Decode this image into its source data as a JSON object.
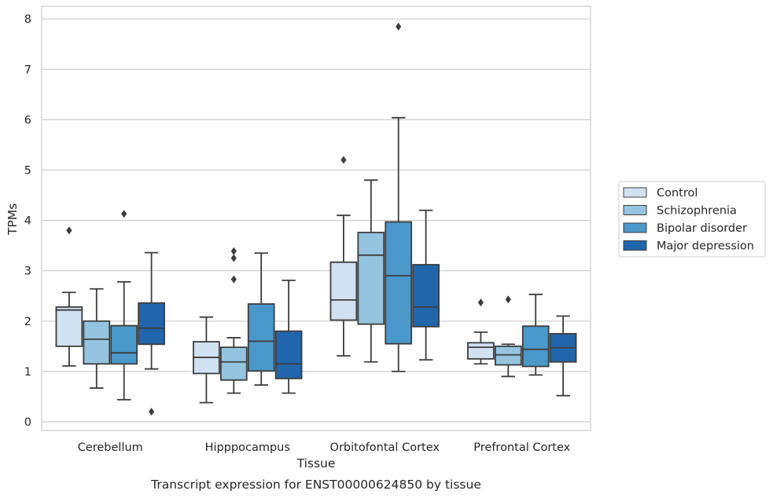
{
  "caption": "Transcript expression for ENST00000624850 by tissue",
  "chart_data": {
    "type": "box",
    "xlabel": "Tissue",
    "ylabel": "TPMs",
    "ylim": [
      -0.17,
      8.22
    ],
    "yticks": [
      0,
      1,
      2,
      3,
      4,
      5,
      6,
      7,
      8
    ],
    "grid": true,
    "legend_position": "right",
    "categories": [
      "Cerebellum",
      "Hipppocampus",
      "Orbitofontal Cortex",
      "Prefrontal Cortex"
    ],
    "series": [
      {
        "name": "Control",
        "color": "#d0e1f2",
        "boxes": [
          {
            "whisker_low": 1.11,
            "q1": 1.5,
            "median": 2.22,
            "q3": 2.28,
            "whisker_high": 2.57,
            "outliers": [
              3.8
            ]
          },
          {
            "whisker_low": 0.38,
            "q1": 0.96,
            "median": 1.28,
            "q3": 1.59,
            "whisker_high": 2.08,
            "outliers": []
          },
          {
            "whisker_low": 1.31,
            "q1": 2.02,
            "median": 2.42,
            "q3": 3.17,
            "whisker_high": 4.1,
            "outliers": [
              5.2
            ]
          },
          {
            "whisker_low": 1.15,
            "q1": 1.25,
            "median": 1.48,
            "q3": 1.57,
            "whisker_high": 1.78,
            "outliers": [
              2.37
            ]
          }
        ]
      },
      {
        "name": "Schizophrenia",
        "color": "#94c4df",
        "boxes": [
          {
            "whisker_low": 0.67,
            "q1": 1.15,
            "median": 1.64,
            "q3": 2.0,
            "whisker_high": 2.64,
            "outliers": []
          },
          {
            "whisker_low": 0.57,
            "q1": 0.83,
            "median": 1.19,
            "q3": 1.48,
            "whisker_high": 1.67,
            "outliers": [
              2.83,
              3.25,
              3.39
            ]
          },
          {
            "whisker_low": 1.19,
            "q1": 1.94,
            "median": 3.31,
            "q3": 3.76,
            "whisker_high": 4.8,
            "outliers": []
          },
          {
            "whisker_low": 0.9,
            "q1": 1.13,
            "median": 1.33,
            "q3": 1.5,
            "whisker_high": 1.54,
            "outliers": [
              2.43
            ]
          }
        ]
      },
      {
        "name": "Bipolar disorder",
        "color": "#4a98c9",
        "boxes": [
          {
            "whisker_low": 0.44,
            "q1": 1.15,
            "median": 1.37,
            "q3": 1.91,
            "whisker_high": 2.78,
            "outliers": [
              4.13
            ]
          },
          {
            "whisker_low": 0.73,
            "q1": 1.01,
            "median": 1.6,
            "q3": 2.34,
            "whisker_high": 3.35,
            "outliers": []
          },
          {
            "whisker_low": 1.0,
            "q1": 1.55,
            "median": 2.9,
            "q3": 3.97,
            "whisker_high": 6.04,
            "outliers": [
              7.85
            ]
          },
          {
            "whisker_low": 0.93,
            "q1": 1.1,
            "median": 1.44,
            "q3": 1.9,
            "whisker_high": 2.53,
            "outliers": []
          }
        ]
      },
      {
        "name": "Major depression",
        "color": "#2166ac",
        "boxes": [
          {
            "whisker_low": 1.05,
            "q1": 1.54,
            "median": 1.86,
            "q3": 2.36,
            "whisker_high": 3.36,
            "outliers": [
              0.2
            ]
          },
          {
            "whisker_low": 0.57,
            "q1": 0.86,
            "median": 1.15,
            "q3": 1.8,
            "whisker_high": 2.81,
            "outliers": []
          },
          {
            "whisker_low": 1.23,
            "q1": 1.89,
            "median": 2.28,
            "q3": 3.12,
            "whisker_high": 4.2,
            "outliers": []
          },
          {
            "whisker_low": 0.52,
            "q1": 1.19,
            "median": 1.47,
            "q3": 1.75,
            "whisker_high": 2.1,
            "outliers": []
          }
        ]
      }
    ]
  }
}
